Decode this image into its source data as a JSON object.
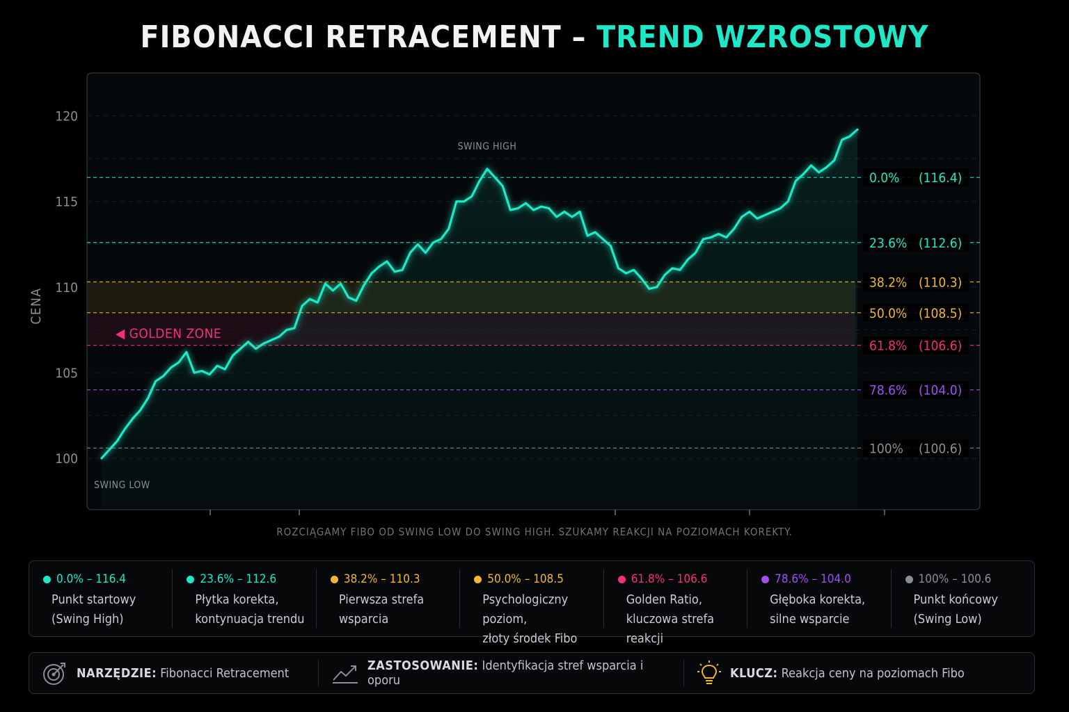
{
  "title": {
    "main": "FIBONACCI RETRACEMENT –",
    "accent": "TREND WZROSTOWY"
  },
  "colors": {
    "line": "#1de9c8",
    "teal": "#1de9c8",
    "gold": "#f2b630",
    "pink": "#f0307a",
    "purple": "#a050f0",
    "gray": "#8a8f93",
    "background": "#000000",
    "panel": "#05090b"
  },
  "chart_data": {
    "type": "line",
    "ylabel": "CENA",
    "ylim": [
      97,
      122.5
    ],
    "yticks": [
      100,
      105,
      110,
      115,
      120
    ],
    "annotations": {
      "swing_high": "SWING HIGH",
      "swing_low": "SWING LOW",
      "golden_zone": "◀ GOLDEN ZONE"
    },
    "series": [
      {
        "values": [
          100.0,
          100.5,
          101.0,
          101.7,
          102.3,
          102.8,
          103.5,
          104.5,
          104.8,
          105.3,
          105.6,
          106.2,
          105.0,
          105.1,
          104.9,
          105.4,
          105.2,
          106.0,
          106.4,
          106.8,
          106.4,
          106.7,
          106.9,
          107.1,
          107.5,
          107.6,
          108.9,
          109.3,
          109.1,
          110.2,
          109.8,
          110.2,
          109.4,
          109.2,
          110.1,
          110.8,
          111.2,
          111.5,
          110.9,
          111.0,
          112.0,
          112.5,
          112.0,
          112.6,
          112.8,
          113.4,
          115.0,
          115.0,
          115.3,
          116.2,
          116.9,
          116.4,
          115.9,
          114.5,
          114.6,
          114.9,
          114.5,
          114.7,
          114.6,
          114.1,
          114.4,
          114.1,
          114.4,
          113.0,
          113.2,
          112.8,
          112.4,
          111.1,
          110.8,
          111.0,
          110.5,
          109.9,
          110.0,
          110.7,
          111.1,
          111.0,
          111.6,
          112.0,
          112.8,
          112.9,
          113.1,
          112.9,
          113.4,
          114.1,
          114.4,
          114.0,
          114.2,
          114.4,
          114.6,
          115.0,
          116.2,
          116.6,
          117.1,
          116.7,
          117.0,
          117.4,
          118.6,
          118.8,
          119.2
        ]
      }
    ],
    "fib_levels": [
      {
        "pct": "0.0%",
        "value": 116.4,
        "label": "(116.4)",
        "color": "#1de9c8"
      },
      {
        "pct": "23.6%",
        "value": 112.6,
        "label": "(112.6)",
        "color": "#1de9c8"
      },
      {
        "pct": "38.2%",
        "value": 110.3,
        "label": "(110.3)",
        "color": "#f2b630"
      },
      {
        "pct": "50.0%",
        "value": 108.5,
        "label": "(108.5)",
        "color": "#f2b630"
      },
      {
        "pct": "61.8%",
        "value": 106.6,
        "label": "(106.6)",
        "color": "#f0307a"
      },
      {
        "pct": "78.6%",
        "value": 104.0,
        "label": "(104.0)",
        "color": "#a050f0"
      },
      {
        "pct": "100%",
        "value": 100.6,
        "label": "(100.6)",
        "color": "#8a8f93"
      }
    ],
    "grid": true
  },
  "note": "ROZCIĄGAMY FIBO OD SWING LOW DO SWING HIGH. SZUKAMY REAKCJI NA POZIOMACH KOREKTY.",
  "legend": [
    {
      "head": "0.0% – 116.4",
      "desc": "Punkt startowy\n(Swing High)",
      "color": "#1de9c8"
    },
    {
      "head": "23.6% – 112.6",
      "desc": "Płytka korekta,\nkontynuacja trendu",
      "color": "#1de9c8"
    },
    {
      "head": "38.2% – 110.3",
      "desc": "Pierwsza strefa\nwsparcia",
      "color": "#f2b630"
    },
    {
      "head": "50.0% – 108.5",
      "desc": "Psychologiczny poziom,\nzłoty środek Fibo",
      "color": "#f2b630"
    },
    {
      "head": "61.8% – 106.6",
      "desc": "Golden Ratio,\nkluczowa strefa reakcji",
      "color": "#f0307a"
    },
    {
      "head": "78.6% – 104.0",
      "desc": "Głęboka korekta,\nsilne wsparcie",
      "color": "#a050f0"
    },
    {
      "head": "100% – 100.6",
      "desc": "Punkt końcowy\n(Swing Low)",
      "color": "#8a8f93"
    }
  ],
  "footer": {
    "tool_label": "NARZĘDZIE:",
    "tool_value": "Fibonacci Retracement",
    "tool_icon": "target-icon",
    "use_label": "ZASTOSOWANIE:",
    "use_value": "Identyfikacja stref wsparcia i oporu",
    "use_icon": "trend-chart-icon",
    "key_label": "KLUCZ:",
    "key_value": "Reakcja ceny na poziomach Fibo",
    "key_icon": "lightbulb-icon"
  }
}
